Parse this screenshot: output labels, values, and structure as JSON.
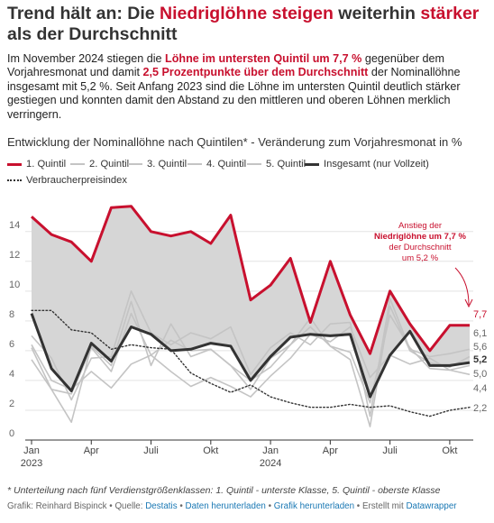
{
  "title": {
    "part1": "Trend hält an: Die ",
    "hl1": "Niedriglöhne steigen",
    "part2": " weiterhin ",
    "hl2": "stärker",
    "part3": " als der Durchschnitt"
  },
  "description": {
    "t1": "Im November 2024 stiegen die ",
    "h1": "Löhne im untersten Quintil um 7,7 %",
    "t2": " gegenüber dem Vorjahresmonat und damit ",
    "h2": "2,5 Prozentpunkte über dem Durchschnitt",
    "t3": " der Nominallöhne insgesamt mit 5,2 %. Seit Anfang 2023 sind die Löhne im untersten Quintil deutlich stärker gestiegen und konnten damit den Abstand zu den mittleren und oberen Löhnen merklich verringern."
  },
  "colors": {
    "q1": "#c8102e",
    "quintiles": "#c4c4c4",
    "total": "#333333",
    "cpi": "#333333",
    "band": "#d6d6d6",
    "link": "#1a78b4"
  },
  "footnote": "* Unterteilung nach fünf Verdienstgrößenklassen: 1. Quintil - unterste Klasse, 5. Quintil - oberste Klasse",
  "credits": {
    "author": "Grafik: Reinhard Bispinck",
    "source_label": "Quelle:",
    "source": "Destatis",
    "data_link": "Daten herunterladen",
    "graphic_link": "Grafik herunterladen",
    "made_with": "Erstellt mit",
    "tool": "Datawrapper",
    "sep": "•"
  },
  "chart_data": {
    "type": "line",
    "title": "Entwicklung der Nominallöhne nach Quintilen* - Veränderung zum Vorjahresmonat in %",
    "x": [
      "2023-01",
      "2023-02",
      "2023-03",
      "2023-04",
      "2023-05",
      "2023-06",
      "2023-07",
      "2023-08",
      "2023-09",
      "2023-10",
      "2023-11",
      "2023-12",
      "2024-01",
      "2024-02",
      "2024-03",
      "2024-04",
      "2024-05",
      "2024-06",
      "2024-07",
      "2024-08",
      "2024-09",
      "2024-10",
      "2024-11"
    ],
    "x_tick_labels": [
      {
        "x": "2023-01",
        "label": "Jan",
        "sub": "2023"
      },
      {
        "x": "2023-04",
        "label": "Apr",
        "sub": ""
      },
      {
        "x": "2023-07",
        "label": "Juli",
        "sub": ""
      },
      {
        "x": "2023-10",
        "label": "Okt",
        "sub": ""
      },
      {
        "x": "2024-01",
        "label": "Jan",
        "sub": "2024"
      },
      {
        "x": "2024-04",
        "label": "Apr",
        "sub": ""
      },
      {
        "x": "2024-07",
        "label": "Juli",
        "sub": ""
      },
      {
        "x": "2024-10",
        "label": "Okt",
        "sub": ""
      }
    ],
    "ylim": [
      0,
      15.5
    ],
    "y_ticks": [
      "0",
      "2",
      "4",
      "6",
      "8",
      "10",
      "12",
      "14"
    ],
    "grid": true,
    "band": "filled area between the 1. Quintil and the Insgesamt series",
    "series": [
      {
        "name": "1. Quintil",
        "style": "q1",
        "values": [
          15.0,
          13.8,
          13.3,
          12.0,
          15.6,
          15.7,
          14.0,
          13.7,
          14.0,
          13.2,
          15.1,
          9.4,
          10.4,
          12.2,
          7.9,
          12.0,
          8.4,
          5.8,
          10.0,
          7.8,
          6.0,
          7.7,
          7.7
        ]
      },
      {
        "name": "2. Quintil",
        "style": "quintile",
        "values": [
          7.0,
          5.5,
          2.7,
          5.5,
          5.6,
          10.0,
          7.2,
          6.4,
          7.2,
          6.8,
          7.6,
          4.4,
          6.2,
          7.2,
          6.4,
          7.8,
          7.9,
          1.6,
          9.5,
          6.1,
          5.6,
          5.8,
          6.1
        ]
      },
      {
        "name": "3. Quintil",
        "style": "quintile",
        "values": [
          6.2,
          3.4,
          1.2,
          6.3,
          5.0,
          9.3,
          5.0,
          7.8,
          5.6,
          6.1,
          5.0,
          3.4,
          5.5,
          6.4,
          7.6,
          6.3,
          5.4,
          0.9,
          9.0,
          6.0,
          5.2,
          4.9,
          5.6
        ]
      },
      {
        "name": "4. Quintil",
        "style": "quintile",
        "values": [
          5.4,
          3.4,
          3.1,
          6.2,
          4.6,
          8.5,
          5.7,
          6.7,
          6.0,
          6.1,
          5.0,
          4.0,
          4.9,
          6.4,
          8.2,
          6.3,
          5.9,
          2.5,
          8.4,
          6.2,
          4.8,
          4.7,
          5.0
        ]
      },
      {
        "name": "5. Quintil",
        "style": "quintile",
        "values": [
          6.4,
          4.0,
          3.4,
          4.6,
          3.5,
          5.1,
          5.7,
          4.6,
          3.6,
          4.2,
          3.6,
          2.9,
          4.3,
          5.5,
          7.1,
          6.6,
          7.6,
          4.2,
          5.7,
          5.1,
          5.5,
          4.7,
          4.4
        ]
      },
      {
        "name": "Insgesamt (nur Vollzeit)",
        "style": "total",
        "values": [
          8.5,
          4.8,
          3.3,
          6.5,
          5.3,
          7.6,
          7.1,
          6.0,
          6.1,
          6.5,
          6.3,
          4.0,
          5.6,
          6.9,
          7.1,
          7.0,
          7.1,
          2.9,
          5.7,
          7.3,
          5.0,
          5.0,
          5.2
        ]
      },
      {
        "name": "Verbraucherpreisindex",
        "style": "cpi",
        "values": [
          8.7,
          8.7,
          7.4,
          7.2,
          6.1,
          6.4,
          6.2,
          6.1,
          4.5,
          3.8,
          3.2,
          3.7,
          2.9,
          2.5,
          2.2,
          2.2,
          2.4,
          2.2,
          2.3,
          1.9,
          1.6,
          2.0,
          2.2
        ]
      }
    ],
    "end_labels": [
      {
        "series": "1. Quintil",
        "text": "7,7",
        "style": "q1"
      },
      {
        "series": "Insgesamt (nur Vollzeit)",
        "text": "5,2",
        "style": "total"
      },
      {
        "series": "Verbraucherpreisindex",
        "text": "2,2",
        "style": "plain"
      },
      {
        "series": "2. Quintil",
        "text": "6,1",
        "style": "plain"
      },
      {
        "series": "3. Quintil",
        "text": "5,6",
        "style": "plain"
      },
      {
        "series": "4. Quintil",
        "text": "5,0",
        "style": "plain"
      },
      {
        "series": "5. Quintil",
        "text": "4,4",
        "style": "plain"
      }
    ],
    "annotation": {
      "line1": "Anstieg der",
      "line2": "Niedriglöhne um 7,7 %",
      "line3": "der Durchschnitt",
      "line4": "um 5,2 %"
    }
  }
}
